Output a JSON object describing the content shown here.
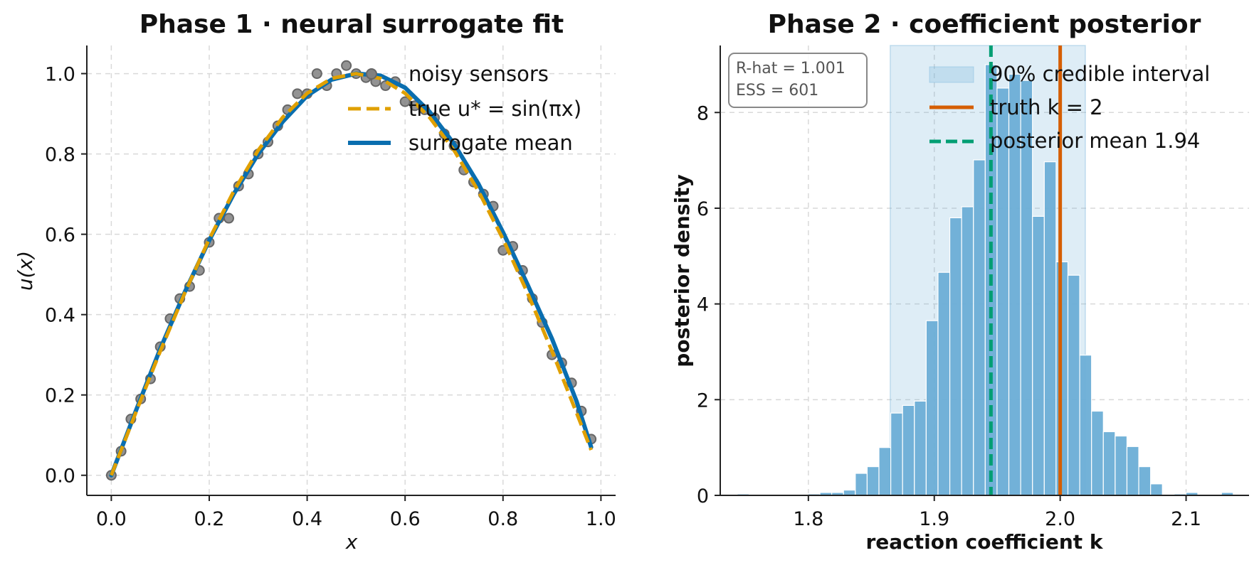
{
  "chart_data": [
    {
      "type": "line",
      "title": "Phase 1 · neural surrogate fit",
      "xlabel": "x",
      "ylabel": "u(x)",
      "xlim": [
        -0.05,
        1.03
      ],
      "ylim": [
        -0.05,
        1.07
      ],
      "xticks": [
        "0.0",
        "0.2",
        "0.4",
        "0.6",
        "0.8",
        "1.0"
      ],
      "yticks": [
        "0.0",
        "0.2",
        "0.4",
        "0.6",
        "0.8",
        "1.0"
      ],
      "grid": true,
      "legend_position": "top-right",
      "series": [
        {
          "name": "noisy sensors",
          "kind": "scatter",
          "color": "#808080",
          "points": [
            [
              0.0,
              0.0
            ],
            [
              0.02,
              0.06
            ],
            [
              0.04,
              0.14
            ],
            [
              0.06,
              0.19
            ],
            [
              0.08,
              0.24
            ],
            [
              0.1,
              0.32
            ],
            [
              0.12,
              0.39
            ],
            [
              0.14,
              0.44
            ],
            [
              0.16,
              0.47
            ],
            [
              0.18,
              0.51
            ],
            [
              0.2,
              0.58
            ],
            [
              0.22,
              0.64
            ],
            [
              0.24,
              0.64
            ],
            [
              0.26,
              0.72
            ],
            [
              0.28,
              0.75
            ],
            [
              0.3,
              0.8
            ],
            [
              0.32,
              0.83
            ],
            [
              0.34,
              0.87
            ],
            [
              0.36,
              0.91
            ],
            [
              0.38,
              0.95
            ],
            [
              0.4,
              0.95
            ],
            [
              0.42,
              1.0
            ],
            [
              0.44,
              0.97
            ],
            [
              0.46,
              1.0
            ],
            [
              0.48,
              1.02
            ],
            [
              0.5,
              1.0
            ],
            [
              0.52,
              0.99
            ],
            [
              0.54,
              0.98
            ],
            [
              0.56,
              0.97
            ],
            [
              0.58,
              0.98
            ],
            [
              0.6,
              0.93
            ],
            [
              0.62,
              0.92
            ],
            [
              0.64,
              0.91
            ],
            [
              0.66,
              0.89
            ],
            [
              0.68,
              0.85
            ],
            [
              0.7,
              0.82
            ],
            [
              0.72,
              0.76
            ],
            [
              0.74,
              0.73
            ],
            [
              0.76,
              0.7
            ],
            [
              0.78,
              0.67
            ],
            [
              0.8,
              0.56
            ],
            [
              0.82,
              0.57
            ],
            [
              0.84,
              0.51
            ],
            [
              0.86,
              0.44
            ],
            [
              0.88,
              0.38
            ],
            [
              0.9,
              0.3
            ],
            [
              0.92,
              0.28
            ],
            [
              0.94,
              0.23
            ],
            [
              0.96,
              0.16
            ],
            [
              0.98,
              0.09
            ]
          ]
        },
        {
          "name": "true u* = sin(πx)",
          "kind": "line",
          "style": "dashed",
          "color": "#E0A000",
          "x": [
            0.0,
            0.05,
            0.1,
            0.15,
            0.2,
            0.25,
            0.3,
            0.35,
            0.4,
            0.45,
            0.5,
            0.55,
            0.6,
            0.65,
            0.7,
            0.75,
            0.8,
            0.85,
            0.9,
            0.95,
            0.98
          ],
          "y": [
            0.0,
            0.156,
            0.309,
            0.454,
            0.588,
            0.707,
            0.809,
            0.891,
            0.951,
            0.988,
            1.0,
            0.988,
            0.951,
            0.891,
            0.809,
            0.707,
            0.588,
            0.454,
            0.309,
            0.156,
            0.063
          ]
        },
        {
          "name": "surrogate mean",
          "kind": "line",
          "style": "solid",
          "color": "#0A6EAF",
          "x": [
            0.0,
            0.05,
            0.1,
            0.15,
            0.2,
            0.25,
            0.3,
            0.35,
            0.4,
            0.45,
            0.5,
            0.55,
            0.6,
            0.65,
            0.7,
            0.75,
            0.8,
            0.85,
            0.9,
            0.95,
            0.98
          ],
          "y": [
            0.0,
            0.16,
            0.315,
            0.456,
            0.585,
            0.7,
            0.8,
            0.88,
            0.945,
            0.985,
            1.0,
            0.995,
            0.965,
            0.905,
            0.825,
            0.725,
            0.605,
            0.475,
            0.34,
            0.185,
            0.07
          ]
        }
      ]
    },
    {
      "type": "bar",
      "title": "Phase 2 · coefficient posterior",
      "xlabel": "reaction coefficient k",
      "ylabel": "posterior density",
      "xlim": [
        1.73,
        2.15
      ],
      "ylim": [
        0,
        9.4
      ],
      "xticks": [
        "1.8",
        "1.9",
        "2.0",
        "2.1"
      ],
      "yticks": [
        "0",
        "2",
        "4",
        "6",
        "8"
      ],
      "grid": true,
      "legend_position": "top-right",
      "histogram": {
        "color": "#6BAED6",
        "bin_width": 0.00938,
        "bin_start": 1.7435,
        "values": [
          0.03,
          0,
          0,
          0,
          0,
          0,
          0.03,
          0.06,
          0.06,
          0.11,
          0.46,
          0.6,
          1.0,
          1.72,
          1.88,
          1.97,
          3.65,
          4.66,
          5.8,
          6.03,
          7.01,
          9.0,
          8.51,
          8.8,
          8.67,
          5.83,
          6.97,
          4.88,
          4.6,
          2.93,
          1.76,
          1.33,
          1.24,
          1.02,
          0.6,
          0.24,
          0,
          0.03,
          0.06,
          0,
          0,
          0.06
        ]
      },
      "credible_interval": {
        "name": "90% credible interval",
        "range": [
          1.865,
          2.02
        ],
        "color": "#6BAED6"
      },
      "truth": {
        "name": "truth k = 2",
        "value": 2.0,
        "color": "#D55E00"
      },
      "posterior_mean": {
        "name": "posterior mean 1.94",
        "value": 1.945,
        "color": "#009E73"
      },
      "stats": [
        "R-hat = 1.001",
        "ESS = 601"
      ]
    }
  ]
}
